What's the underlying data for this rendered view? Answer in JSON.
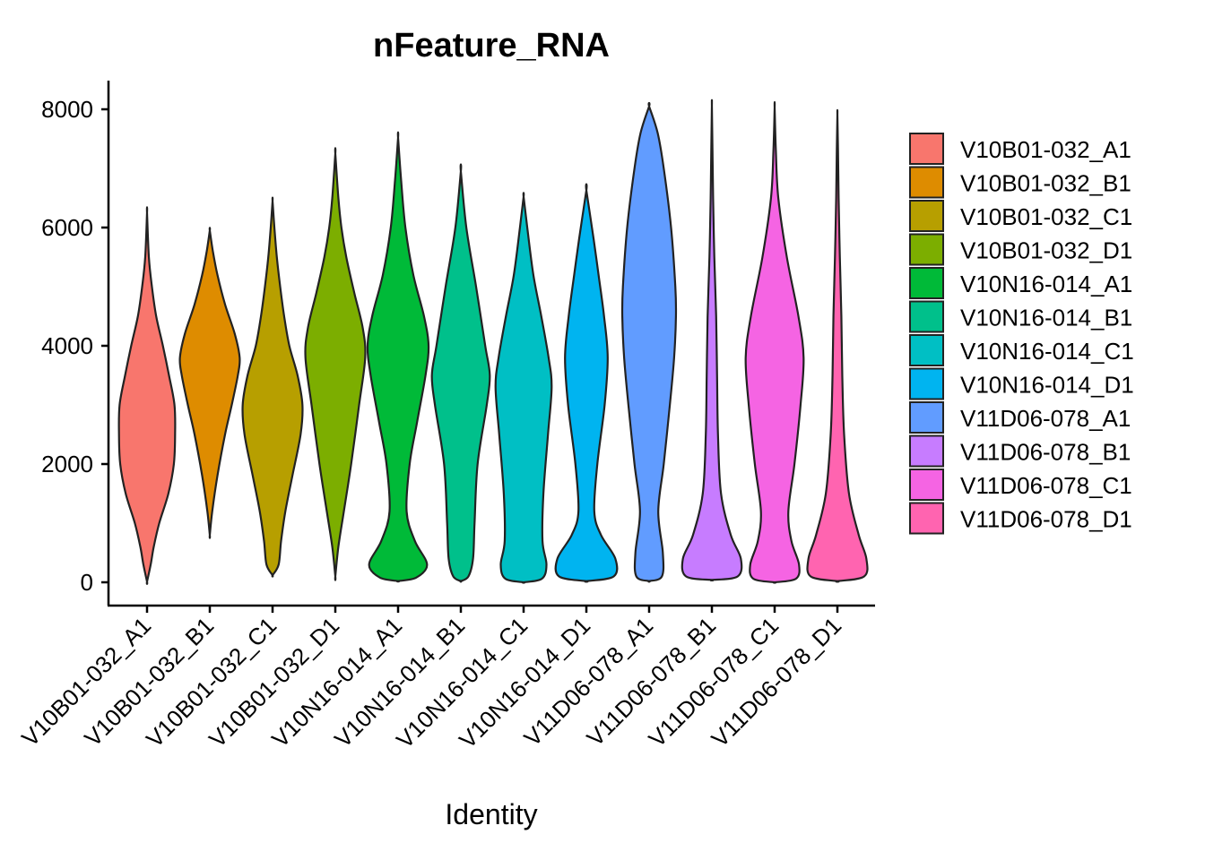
{
  "chart_data": {
    "type": "violin",
    "title": "nFeature_RNA",
    "xlabel": "Identity",
    "ylabel": "",
    "ylim": [
      -400,
      8500
    ],
    "yticks": [
      0,
      2000,
      4000,
      6000,
      8000
    ],
    "grid": false,
    "legend_position": "right",
    "categories": [
      "V10B01-032_A1",
      "V10B01-032_B1",
      "V10B01-032_C1",
      "V10B01-032_D1",
      "V10N16-014_A1",
      "V10N16-014_B1",
      "V10N16-014_C1",
      "V10N16-014_D1",
      "V11D06-078_A1",
      "V11D06-078_B1",
      "V11D06-078_C1",
      "V11D06-078_D1"
    ],
    "colors": [
      "#F8766D",
      "#DE8C00",
      "#B79F00",
      "#7CAE00",
      "#00BA38",
      "#00C08B",
      "#00BFC4",
      "#00B4F0",
      "#619CFF",
      "#C77CFF",
      "#F564E3",
      "#FF64B0"
    ],
    "series": [
      {
        "min": 10,
        "max": 6250,
        "profile": [
          [
            10,
            0.0
          ],
          [
            300,
            0.12
          ],
          [
            600,
            0.22
          ],
          [
            1000,
            0.4
          ],
          [
            1500,
            0.7
          ],
          [
            2000,
            0.88
          ],
          [
            2500,
            0.92
          ],
          [
            3000,
            0.9
          ],
          [
            3500,
            0.72
          ],
          [
            4000,
            0.52
          ],
          [
            4500,
            0.3
          ],
          [
            5000,
            0.16
          ],
          [
            5500,
            0.06
          ],
          [
            6250,
            0.0
          ]
        ]
      },
      {
        "min": 800,
        "max": 5950,
        "profile": [
          [
            800,
            0.0
          ],
          [
            1200,
            0.08
          ],
          [
            1800,
            0.25
          ],
          [
            2500,
            0.5
          ],
          [
            3000,
            0.72
          ],
          [
            3500,
            0.92
          ],
          [
            3800,
            0.98
          ],
          [
            4200,
            0.82
          ],
          [
            4700,
            0.5
          ],
          [
            5200,
            0.25
          ],
          [
            5600,
            0.1
          ],
          [
            5950,
            0.0
          ]
        ]
      },
      {
        "min": 120,
        "max": 6450,
        "profile": [
          [
            120,
            0.0
          ],
          [
            300,
            0.2
          ],
          [
            700,
            0.28
          ],
          [
            1200,
            0.42
          ],
          [
            1800,
            0.65
          ],
          [
            2500,
            0.92
          ],
          [
            3000,
            0.98
          ],
          [
            3500,
            0.82
          ],
          [
            4000,
            0.55
          ],
          [
            4500,
            0.38
          ],
          [
            5000,
            0.25
          ],
          [
            5500,
            0.14
          ],
          [
            6000,
            0.06
          ],
          [
            6450,
            0.0
          ]
        ]
      },
      {
        "min": 100,
        "max": 7250,
        "profile": [
          [
            100,
            0.0
          ],
          [
            600,
            0.1
          ],
          [
            1200,
            0.28
          ],
          [
            2000,
            0.52
          ],
          [
            3000,
            0.78
          ],
          [
            3800,
            0.98
          ],
          [
            4300,
            0.9
          ],
          [
            4900,
            0.62
          ],
          [
            5500,
            0.36
          ],
          [
            6000,
            0.2
          ],
          [
            6500,
            0.1
          ],
          [
            7250,
            0.0
          ]
        ]
      },
      {
        "min": 20,
        "max": 7520,
        "profile": [
          [
            20,
            0.0
          ],
          [
            80,
            0.6
          ],
          [
            300,
            0.95
          ],
          [
            700,
            0.55
          ],
          [
            1200,
            0.28
          ],
          [
            2000,
            0.38
          ],
          [
            2700,
            0.62
          ],
          [
            3500,
            0.9
          ],
          [
            4000,
            1.0
          ],
          [
            4500,
            0.85
          ],
          [
            5200,
            0.5
          ],
          [
            6000,
            0.24
          ],
          [
            6800,
            0.1
          ],
          [
            7520,
            0.0
          ]
        ]
      },
      {
        "min": 20,
        "max": 6950,
        "profile": [
          [
            20,
            0.0
          ],
          [
            100,
            0.25
          ],
          [
            400,
            0.4
          ],
          [
            1000,
            0.45
          ],
          [
            2000,
            0.55
          ],
          [
            3000,
            0.85
          ],
          [
            3500,
            0.95
          ],
          [
            4000,
            0.8
          ],
          [
            5000,
            0.5
          ],
          [
            6000,
            0.18
          ],
          [
            6950,
            0.0
          ]
        ]
      },
      {
        "min": 0,
        "max": 6520,
        "profile": [
          [
            0,
            0.0
          ],
          [
            60,
            0.6
          ],
          [
            300,
            0.75
          ],
          [
            700,
            0.62
          ],
          [
            1500,
            0.65
          ],
          [
            2500,
            0.8
          ],
          [
            3300,
            0.92
          ],
          [
            3800,
            0.82
          ],
          [
            4500,
            0.58
          ],
          [
            5200,
            0.32
          ],
          [
            6000,
            0.12
          ],
          [
            6520,
            0.0
          ]
        ]
      },
      {
        "min": 20,
        "max": 6630,
        "profile": [
          [
            20,
            0.0
          ],
          [
            100,
            0.9
          ],
          [
            400,
            0.95
          ],
          [
            800,
            0.48
          ],
          [
            1200,
            0.26
          ],
          [
            2000,
            0.36
          ],
          [
            3000,
            0.6
          ],
          [
            3800,
            0.7
          ],
          [
            4500,
            0.58
          ],
          [
            5200,
            0.4
          ],
          [
            5800,
            0.24
          ],
          [
            6630,
            0.0
          ]
        ]
      },
      {
        "min": 20,
        "max": 8050,
        "profile": [
          [
            20,
            0.0
          ],
          [
            100,
            0.42
          ],
          [
            500,
            0.45
          ],
          [
            1200,
            0.3
          ],
          [
            2000,
            0.48
          ],
          [
            3000,
            0.68
          ],
          [
            3800,
            0.82
          ],
          [
            4500,
            0.88
          ],
          [
            5000,
            0.86
          ],
          [
            6000,
            0.72
          ],
          [
            7000,
            0.48
          ],
          [
            7600,
            0.28
          ],
          [
            8050,
            0.0
          ]
        ]
      },
      {
        "min": 40,
        "max": 8060,
        "profile": [
          [
            40,
            0.0
          ],
          [
            100,
            0.85
          ],
          [
            400,
            0.95
          ],
          [
            800,
            0.62
          ],
          [
            1500,
            0.3
          ],
          [
            2500,
            0.2
          ],
          [
            3500,
            0.17
          ],
          [
            4500,
            0.14
          ],
          [
            5500,
            0.08
          ],
          [
            6500,
            0.04
          ],
          [
            7300,
            0.02
          ],
          [
            8060,
            0.0
          ]
        ]
      },
      {
        "min": 0,
        "max": 8030,
        "profile": [
          [
            0,
            0.0
          ],
          [
            60,
            0.7
          ],
          [
            300,
            0.8
          ],
          [
            700,
            0.55
          ],
          [
            1200,
            0.45
          ],
          [
            2000,
            0.65
          ],
          [
            3000,
            0.85
          ],
          [
            3800,
            0.95
          ],
          [
            4500,
            0.78
          ],
          [
            5500,
            0.4
          ],
          [
            6500,
            0.12
          ],
          [
            7300,
            0.04
          ],
          [
            8030,
            0.0
          ]
        ]
      },
      {
        "min": 20,
        "max": 7910,
        "profile": [
          [
            20,
            0.0
          ],
          [
            100,
            0.88
          ],
          [
            400,
            0.95
          ],
          [
            800,
            0.7
          ],
          [
            1500,
            0.38
          ],
          [
            2500,
            0.22
          ],
          [
            3500,
            0.16
          ],
          [
            4500,
            0.13
          ],
          [
            5500,
            0.08
          ],
          [
            6500,
            0.04
          ],
          [
            7300,
            0.02
          ],
          [
            7910,
            0.0
          ]
        ]
      }
    ]
  }
}
